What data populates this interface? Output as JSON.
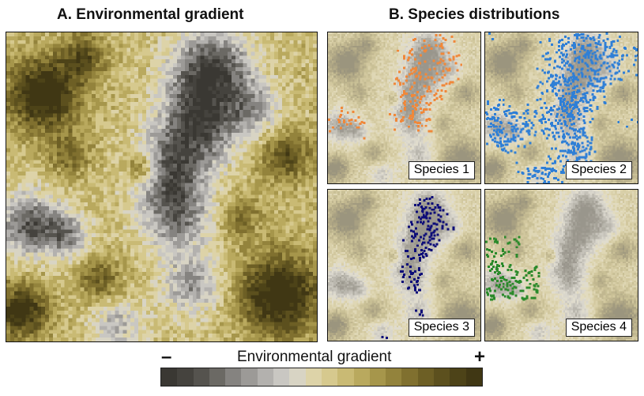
{
  "panels": {
    "a_title": "A. Environmental gradient",
    "b_title": "B. Species distributions"
  },
  "species": [
    {
      "label": "Species 1",
      "color": "#f0883a"
    },
    {
      "label": "Species 2",
      "color": "#2f7fd6"
    },
    {
      "label": "Species 3",
      "color": "#0c0c78"
    },
    {
      "label": "Species 4",
      "color": "#2b8a2b"
    }
  ],
  "colorbar": {
    "title": "Environmental gradient",
    "minus": "–",
    "plus": "+",
    "colors": [
      "#3a3833",
      "#45433e",
      "#55534e",
      "#6b6964",
      "#858380",
      "#9c9a97",
      "#b3b1ae",
      "#c9c7c2",
      "#d8d4c4",
      "#ddd3a8",
      "#d6c98e",
      "#c9ba74",
      "#b9a95e",
      "#a6964b",
      "#93833c",
      "#80702f",
      "#6d5f25",
      "#5c501e",
      "#4d4318",
      "#403714"
    ]
  }
}
